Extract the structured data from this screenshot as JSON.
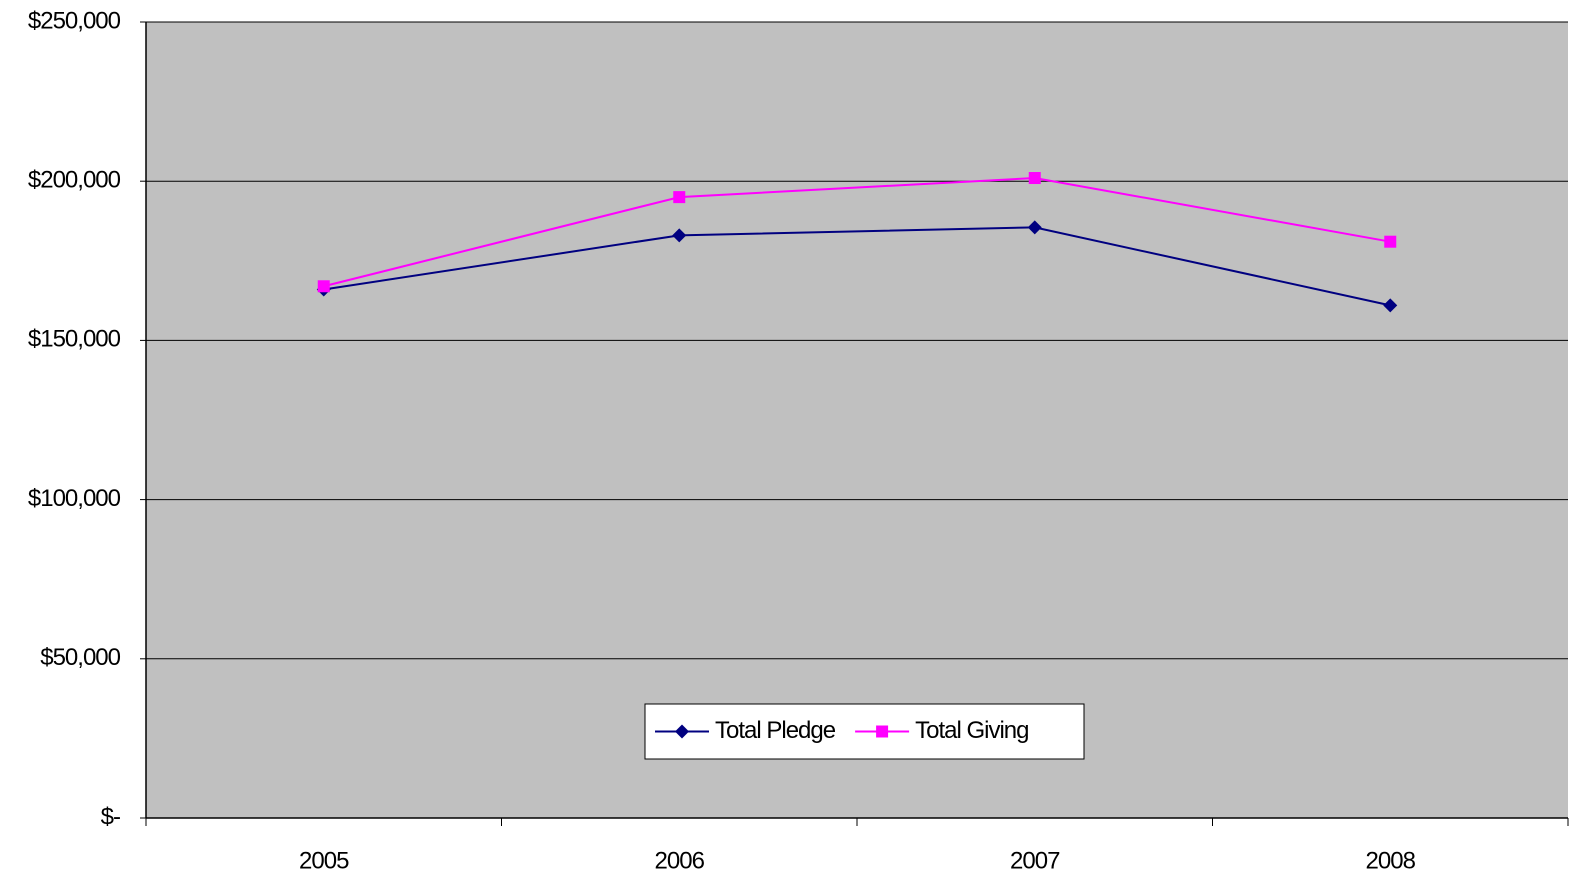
{
  "chart_data": {
    "type": "line",
    "categories": [
      "2005",
      "2006",
      "2007",
      "2008"
    ],
    "series": [
      {
        "name": "Total Pledge",
        "color": "#000080",
        "marker": "diamond",
        "values": [
          166000,
          183000,
          185500,
          161000
        ]
      },
      {
        "name": "Total Giving",
        "color": "#ff00ff",
        "marker": "square",
        "values": [
          167000,
          195000,
          201000,
          181000
        ]
      }
    ],
    "ylim": [
      0,
      250000
    ],
    "yticks": [
      {
        "value": 0,
        "label": "$-"
      },
      {
        "value": 50000,
        "label": "$50,000"
      },
      {
        "value": 100000,
        "label": "$100,000"
      },
      {
        "value": 150000,
        "label": "$150,000"
      },
      {
        "value": 200000,
        "label": "$200,000"
      },
      {
        "value": 250000,
        "label": "$250,000"
      }
    ],
    "grid": true,
    "plot_background": "#c0c0c0",
    "legend": "bottom"
  }
}
